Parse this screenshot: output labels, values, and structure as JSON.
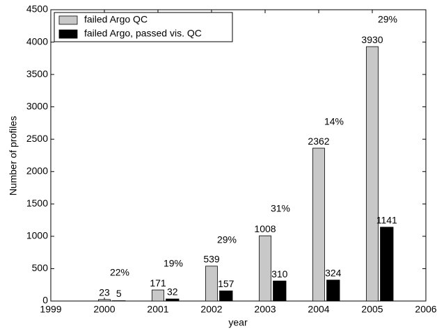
{
  "chart_data": {
    "type": "bar",
    "x": [
      2000,
      2001,
      2002,
      2003,
      2004,
      2005
    ],
    "xlim": [
      1999,
      2006
    ],
    "xticks": [
      1999,
      2000,
      2001,
      2002,
      2003,
      2004,
      2005,
      2006
    ],
    "ylim": [
      0,
      4500
    ],
    "yticks": [
      0,
      500,
      1000,
      1500,
      2000,
      2500,
      3000,
      3500,
      4000,
      4500
    ],
    "xlabel": "year",
    "ylabel": "Number of profiles",
    "legend": "upper left",
    "series": [
      {
        "name": "failed Argo QC",
        "color": "#c8c8c8",
        "values": [
          23,
          171,
          539,
          1008,
          2362,
          3930
        ]
      },
      {
        "name": "failed Argo, passed vis. QC",
        "color": "#000000",
        "values": [
          5,
          32,
          157,
          310,
          324,
          1141
        ]
      }
    ],
    "annotations": [
      "22%",
      "19%",
      "29%",
      "31%",
      "14%",
      "29%"
    ]
  }
}
